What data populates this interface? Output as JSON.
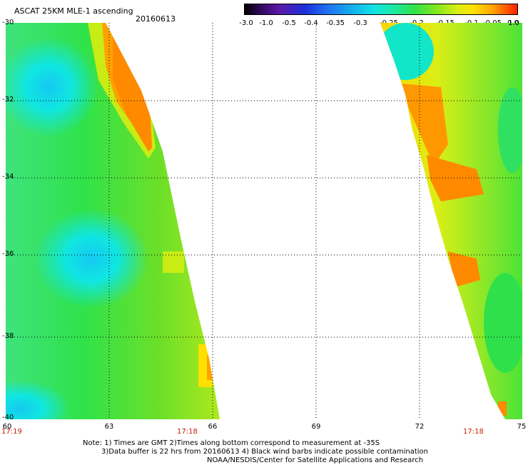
{
  "header": {
    "title": "ASCAT 25KM MLE-1 ascending",
    "date": "20160613"
  },
  "colorbar": {
    "labels": [
      "-3.0",
      "-1.0",
      "-0.5",
      "-0.4",
      "-0.35",
      "-0.3",
      "-0.25",
      "-0.2",
      "-0.15",
      "-0.1",
      "-0.05",
      "0.0",
      "1.0"
    ],
    "colors": [
      "#000000",
      "#5a1ca8",
      "#1c2fd8",
      "#1f6ff0",
      "#14b2ee",
      "#10e2e6",
      "#1ee9a0",
      "#2fe24a",
      "#7de71f",
      "#dbee15",
      "#ffe200",
      "#ffa200",
      "#ff2000"
    ]
  },
  "map": {
    "lat_labels": [
      "-30",
      "-32",
      "-34",
      "-36",
      "-38",
      "-40"
    ],
    "lon_labels": [
      "60",
      "63",
      "66",
      "69",
      "72",
      "75"
    ],
    "time_labels": [
      "17:19",
      "17:18",
      "17:18"
    ],
    "gridlines": true
  },
  "footer": {
    "note_line1": "Note: 1) Times are GMT 2)Times along bottom correspond to measurement at -35S",
    "note_line2": "3)Data buffer is 22 hrs from 20160613 4) Black wind barbs indicate possible contamination",
    "credit": "NOAA/NESDIS/Center for Satellite Applications and Research"
  }
}
